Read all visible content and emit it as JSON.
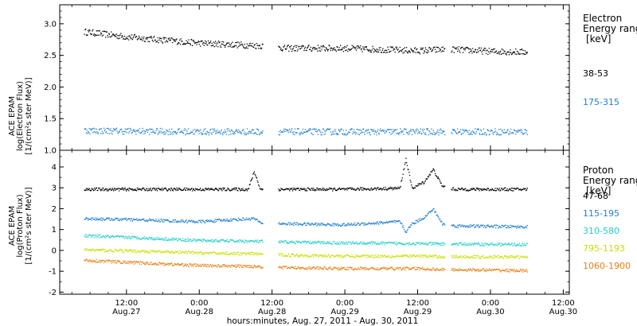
{
  "figure": {
    "xlabel": "hours:minutes, Aug. 27, 2011 - Aug. 30, 2011",
    "x_ticks": [
      {
        "time": "12:00",
        "date": "Aug.27"
      },
      {
        "time": "0:00",
        "date": "Aug.28"
      },
      {
        "time": "12:00",
        "date": "Aug.28"
      },
      {
        "time": "0:00",
        "date": "Aug.29"
      },
      {
        "time": "12:00",
        "date": "Aug.29"
      },
      {
        "time": "0:00",
        "date": "Aug.30"
      },
      {
        "time": "12:00",
        "date": "Aug.30"
      }
    ]
  },
  "chart_data": [
    {
      "type": "scatter",
      "ylabel": [
        "ACE EPAM",
        "log(Electron Flux)",
        "[1/(cm²s ster MeV)]"
      ],
      "legend_title": [
        "Electron",
        "Energy range",
        "[keV]"
      ],
      "ylim": [
        1.0,
        3.3
      ],
      "yticks": [
        "1.0",
        "1.5",
        "2.0",
        "2.5",
        "3.0"
      ],
      "data_gaps": [
        [
          "Aug.28 10:30",
          "Aug.28 13:00"
        ],
        [
          "Aug.29 16:30",
          "Aug.29 17:30"
        ]
      ],
      "series": [
        {
          "name": "38-53",
          "color": "#000000",
          "x": [
            "Aug.27 05:00",
            "Aug.27 12:00",
            "Aug.28 00:00",
            "Aug.28 10:00",
            "Aug.28 14:00",
            "Aug.29 00:00",
            "Aug.29 12:00",
            "Aug.29 16:00",
            "Aug.29 18:00",
            "Aug.30 00:00",
            "Aug.30 06:00"
          ],
          "y": [
            2.88,
            2.8,
            2.7,
            2.66,
            2.62,
            2.62,
            2.58,
            2.6,
            2.6,
            2.57,
            2.56
          ]
        },
        {
          "name": "175-315",
          "color": "#1f7fd0",
          "x": [
            "Aug.27 05:00",
            "Aug.27 12:00",
            "Aug.28 00:00",
            "Aug.28 10:00",
            "Aug.28 14:00",
            "Aug.29 00:00",
            "Aug.29 12:00",
            "Aug.29 16:00",
            "Aug.29 18:00",
            "Aug.30 00:00",
            "Aug.30 06:00"
          ],
          "y": [
            1.32,
            1.31,
            1.3,
            1.3,
            1.3,
            1.3,
            1.3,
            1.3,
            1.3,
            1.3,
            1.3
          ]
        }
      ]
    },
    {
      "type": "scatter",
      "ylabel": [
        "ACE EPAM",
        "log(Proton Flux)",
        "[1/(cm²s ster MeV)]"
      ],
      "legend_title": [
        "Proton",
        "Energy range",
        "[keV]"
      ],
      "ylim": [
        -2.1,
        4.8
      ],
      "yticks": [
        "-2",
        "-1",
        "0",
        "1",
        "2",
        "3",
        "4"
      ],
      "data_gaps": [
        [
          "Aug.28 10:30",
          "Aug.28 13:00"
        ],
        [
          "Aug.29 16:30",
          "Aug.29 17:30"
        ]
      ],
      "series": [
        {
          "name": "47-68",
          "color": "#000000",
          "x": [
            "Aug.27 05:00",
            "Aug.27 12:00",
            "Aug.28 00:00",
            "Aug.28 08:00",
            "Aug.28 09:00",
            "Aug.28 10:00",
            "Aug.28 14:00",
            "Aug.29 00:00",
            "Aug.29 09:00",
            "Aug.29 10:00",
            "Aug.29 11:00",
            "Aug.29 13:00",
            "Aug.29 14:30",
            "Aug.29 16:00",
            "Aug.29 18:00",
            "Aug.30 06:00"
          ],
          "y": [
            2.95,
            2.95,
            2.95,
            2.95,
            3.8,
            2.95,
            2.95,
            2.95,
            3.0,
            4.4,
            3.0,
            3.3,
            3.9,
            3.1,
            2.95,
            2.95
          ]
        },
        {
          "name": "115-195",
          "color": "#1f7fd0",
          "x": [
            "Aug.27 05:00",
            "Aug.27 12:00",
            "Aug.28 00:00",
            "Aug.28 09:00",
            "Aug.28 10:00",
            "Aug.28 14:00",
            "Aug.29 00:00",
            "Aug.29 09:00",
            "Aug.29 10:00",
            "Aug.29 11:00",
            "Aug.29 13:00",
            "Aug.29 14:30",
            "Aug.29 16:00",
            "Aug.29 18:00",
            "Aug.30 06:00"
          ],
          "y": [
            1.55,
            1.5,
            1.4,
            1.55,
            1.35,
            1.3,
            1.25,
            1.4,
            0.9,
            1.3,
            1.6,
            2.0,
            1.3,
            1.2,
            1.15
          ]
        },
        {
          "name": "310-580",
          "color": "#20d0c8",
          "x": [
            "Aug.27 05:00",
            "Aug.27 12:00",
            "Aug.28 00:00",
            "Aug.28 10:00",
            "Aug.28 14:00",
            "Aug.29 00:00",
            "Aug.29 12:00",
            "Aug.29 16:00",
            "Aug.29 18:00",
            "Aug.30 06:00"
          ],
          "y": [
            0.72,
            0.65,
            0.5,
            0.45,
            0.42,
            0.38,
            0.35,
            0.33,
            0.33,
            0.3
          ]
        },
        {
          "name": "795-1193",
          "color": "#c8e000",
          "x": [
            "Aug.27 05:00",
            "Aug.27 12:00",
            "Aug.28 00:00",
            "Aug.28 10:00",
            "Aug.28 14:00",
            "Aug.29 00:00",
            "Aug.29 12:00",
            "Aug.29 16:00",
            "Aug.29 18:00",
            "Aug.30 06:00"
          ],
          "y": [
            0.05,
            0.0,
            -0.1,
            -0.15,
            -0.2,
            -0.25,
            -0.25,
            -0.28,
            -0.28,
            -0.3
          ]
        },
        {
          "name": "1060-1900",
          "color": "#e87f10",
          "x": [
            "Aug.27 05:00",
            "Aug.27 12:00",
            "Aug.28 00:00",
            "Aug.28 10:00",
            "Aug.28 14:00",
            "Aug.29 00:00",
            "Aug.29 12:00",
            "Aug.29 16:00",
            "Aug.29 18:00",
            "Aug.30 06:00"
          ],
          "y": [
            -0.45,
            -0.55,
            -0.7,
            -0.75,
            -0.8,
            -0.85,
            -0.85,
            -0.9,
            -0.9,
            -0.95
          ]
        }
      ]
    }
  ]
}
